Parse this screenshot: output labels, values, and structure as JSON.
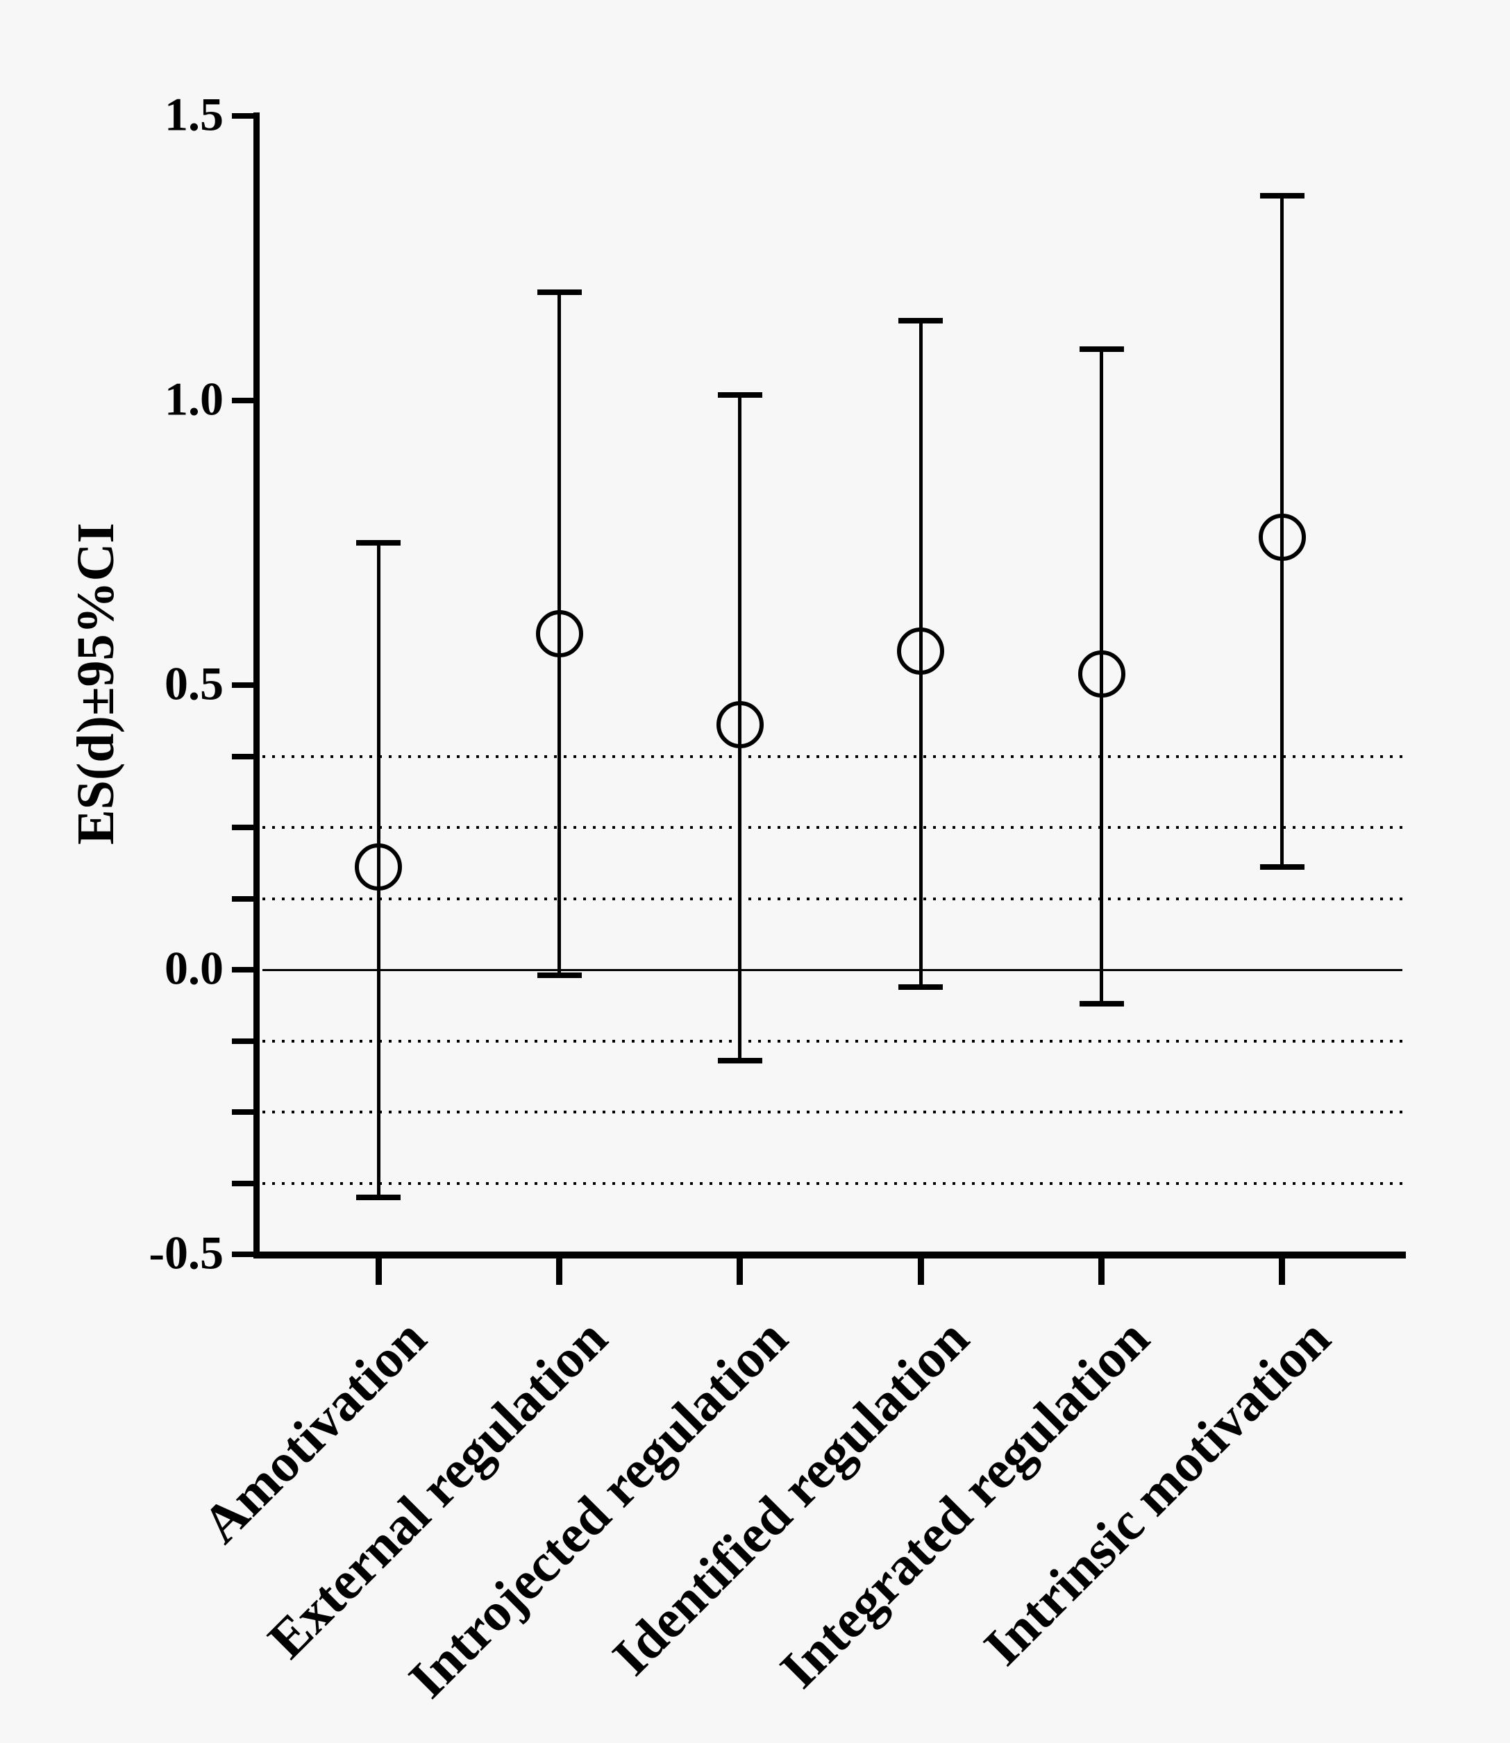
{
  "figure": {
    "background_color": "#f7f7f7",
    "ink_color": "#000000",
    "title": ""
  },
  "chart_data": {
    "type": "scatter",
    "subtype": "point-estimates-with-95ci-error-bars",
    "title": "",
    "xlabel": "",
    "ylabel": "ES(d)±95%CI",
    "ylim": [
      -0.5,
      1.5
    ],
    "y_major_ticks": [
      1.5,
      1.0,
      0.5,
      0.0,
      -0.5
    ],
    "y_major_tick_labels": [
      "1.5",
      "1.0",
      "0.5",
      "0.0",
      "-0.5"
    ],
    "y_unlabeled_ticks": [
      0.375,
      0.25,
      0.125,
      -0.125,
      -0.25,
      -0.375
    ],
    "dotted_gridlines_y": [
      0.375,
      0.25,
      0.125,
      -0.125,
      -0.25,
      -0.375
    ],
    "solid_reference_line_y": 0.0,
    "grid": "horizontal dotted lines at ±0.125, ±0.25, ±0.375; solid line at 0",
    "legend_position": "none",
    "marker": "open-circle",
    "categories": [
      "Amotivation",
      "External regulation",
      "Introjected regulation",
      "Identified regulation",
      "Integrated regulation",
      "Intrinsic motivation"
    ],
    "series": [
      {
        "name": "Effect size ES(d) with 95% CI",
        "means": [
          0.18,
          0.59,
          0.43,
          0.56,
          0.52,
          0.76
        ],
        "ci_upper": [
          0.75,
          1.19,
          1.01,
          1.14,
          1.09,
          1.36
        ],
        "ci_lower": [
          -0.4,
          -0.01,
          -0.16,
          -0.03,
          -0.06,
          0.18
        ]
      }
    ]
  }
}
